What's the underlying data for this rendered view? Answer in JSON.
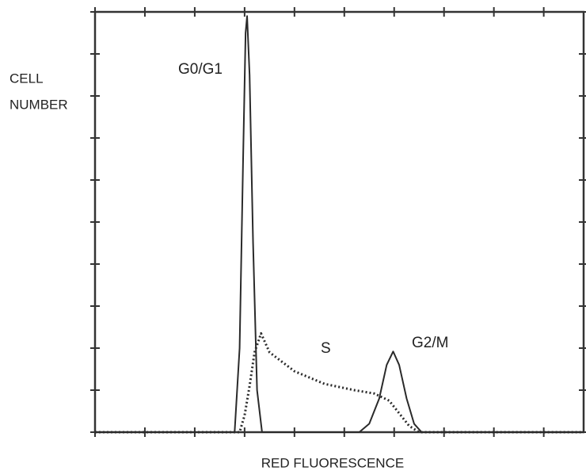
{
  "chart_data": {
    "type": "line",
    "x_label": "RED FLUORESCENCE",
    "y_label": [
      "CELL",
      "NUMBER"
    ],
    "annotations": [
      "G0/G1",
      "S",
      "G2/M"
    ],
    "xlim": [
      0,
      9.8
    ],
    "ylim": [
      0,
      10
    ],
    "xticks": [
      0,
      1,
      2,
      3,
      4,
      5,
      6,
      7,
      8,
      9
    ],
    "yticks": [
      0,
      1,
      2,
      3,
      4,
      5,
      6,
      7,
      8,
      9,
      10
    ],
    "series": [
      {
        "color": "#2a2a2a",
        "style": "solid",
        "x": [
          0,
          2.8,
          2.9,
          2.97,
          3.02,
          3.05,
          3.1,
          3.17,
          3.25,
          3.35,
          5.3,
          5.5,
          5.7,
          5.85,
          5.98,
          6.1,
          6.25,
          6.4,
          6.55,
          9.8
        ],
        "values": [
          0,
          0,
          2.0,
          6.5,
          9.5,
          9.9,
          8.5,
          4.5,
          1.0,
          0,
          0,
          0.2,
          0.8,
          1.6,
          1.92,
          1.6,
          0.8,
          0.2,
          0,
          0
        ]
      },
      {
        "color": "#2a2a2a",
        "style": "dotted",
        "x": [
          0,
          2.9,
          3.0,
          3.1,
          3.2,
          3.33,
          3.5,
          4.0,
          4.6,
          5.2,
          5.6,
          5.9,
          6.1,
          6.3,
          6.5,
          9.8
        ],
        "values": [
          0,
          0,
          0.4,
          1.1,
          1.9,
          2.35,
          1.9,
          1.45,
          1.15,
          1.0,
          0.92,
          0.75,
          0.45,
          0.15,
          0,
          0
        ]
      }
    ]
  }
}
